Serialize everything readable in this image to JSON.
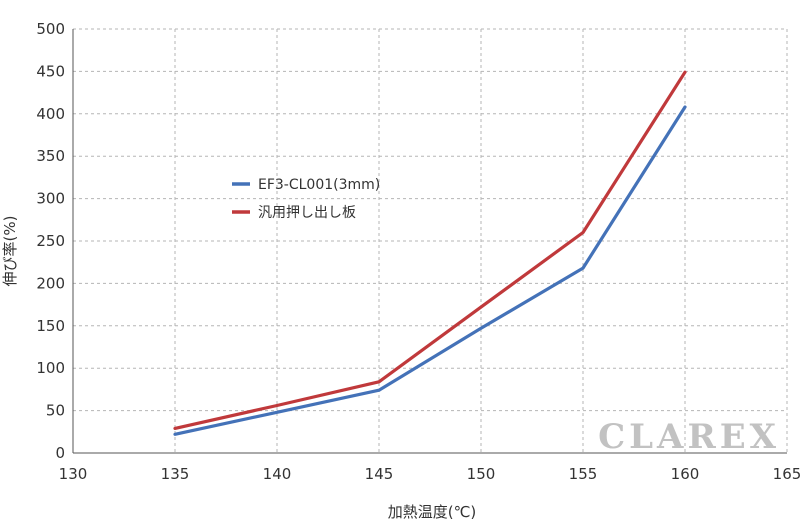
{
  "chart_data": {
    "type": "line",
    "xlabel": "加熱温度(℃)",
    "ylabel": "伸び率(%)",
    "xlim": [
      130,
      165
    ],
    "ylim": [
      0,
      500
    ],
    "x_ticks": [
      130,
      135,
      140,
      145,
      150,
      155,
      160,
      165
    ],
    "y_ticks": [
      0,
      50,
      100,
      150,
      200,
      250,
      300,
      350,
      400,
      450,
      500
    ],
    "grid": true,
    "legend_position": "center-left",
    "series": [
      {
        "name": "EF3-CL001(3mm)",
        "color": "#4472b8",
        "x": [
          135,
          140,
          145,
          150,
          155,
          160
        ],
        "y": [
          22,
          48,
          74,
          147,
          218,
          408
        ]
      },
      {
        "name": "汎用押し出し板",
        "color": "#c0393b",
        "x": [
          135,
          140,
          145,
          150,
          155,
          160
        ],
        "y": [
          29,
          56,
          84,
          172,
          260,
          449
        ]
      }
    ]
  },
  "watermark": "CLAREX"
}
